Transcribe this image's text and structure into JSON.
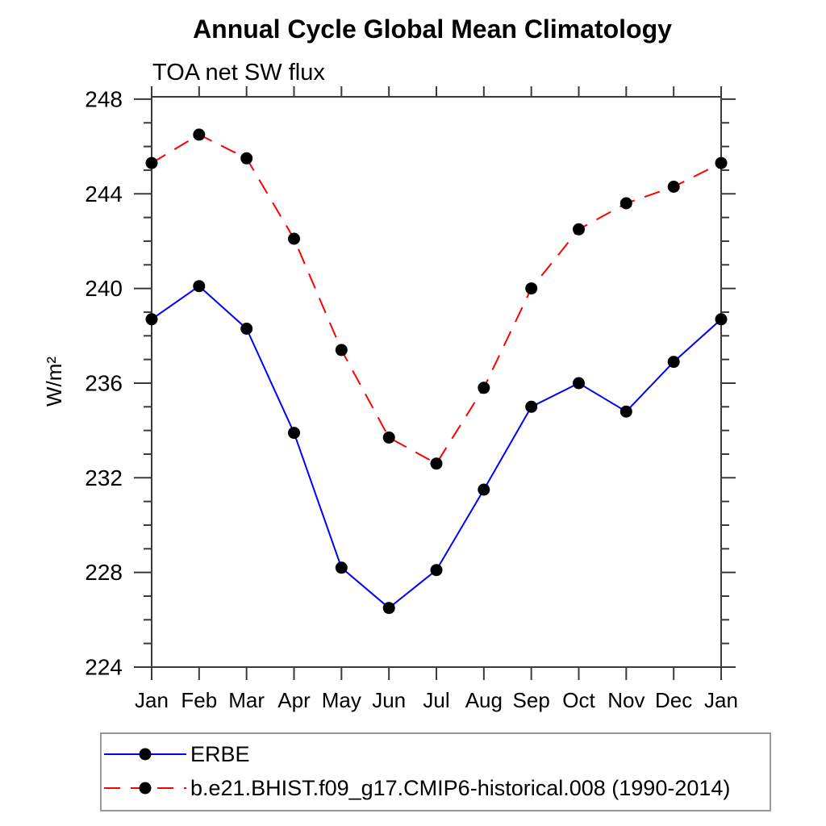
{
  "page": {
    "background_color": "#ffffff",
    "frame_color": "#3a3a3a",
    "text_color": "#000000"
  },
  "header": {
    "title": "Annual Cycle Global Mean Climatology",
    "subtitle": "TOA net SW flux"
  },
  "chart_data": {
    "type": "line",
    "title": "Annual Cycle Global Mean Climatology",
    "subtitle": "TOA net SW flux",
    "xlabel": "",
    "ylabel": "W/m²",
    "categories": [
      "Jan",
      "Feb",
      "Mar",
      "Apr",
      "May",
      "Jun",
      "Jul",
      "Aug",
      "Sep",
      "Oct",
      "Nov",
      "Dec",
      "Jan"
    ],
    "series": [
      {
        "name": "ERBE",
        "color": "#0000ff",
        "line_style": "solid",
        "marker": "filled-circle",
        "marker_color": "#000000",
        "values": [
          238.7,
          240.1,
          238.3,
          233.9,
          228.2,
          226.5,
          228.1,
          231.5,
          235.0,
          236.0,
          234.8,
          236.9,
          238.7
        ]
      },
      {
        "name": "b.e21.BHIST.f09_g17.CMIP6-historical.008 (1990-2014)",
        "color": "#ff0000",
        "line_style": "dashed",
        "marker": "filled-circle",
        "marker_color": "#000000",
        "values": [
          245.3,
          246.5,
          245.5,
          242.1,
          237.4,
          233.7,
          232.6,
          235.8,
          240.0,
          242.5,
          243.6,
          244.3,
          245.3
        ]
      }
    ],
    "ylim": [
      224,
      248.1
    ],
    "yticks_major": [
      224,
      228,
      232,
      236,
      240,
      244,
      248
    ],
    "ytick_minor_step": 1,
    "grid": false,
    "legend_position": "bottom-left-box"
  },
  "legend": {
    "entries": [
      {
        "label": "ERBE"
      },
      {
        "label": "b.e21.BHIST.f09_g17.CMIP6-historical.008 (1990-2014)"
      }
    ]
  }
}
